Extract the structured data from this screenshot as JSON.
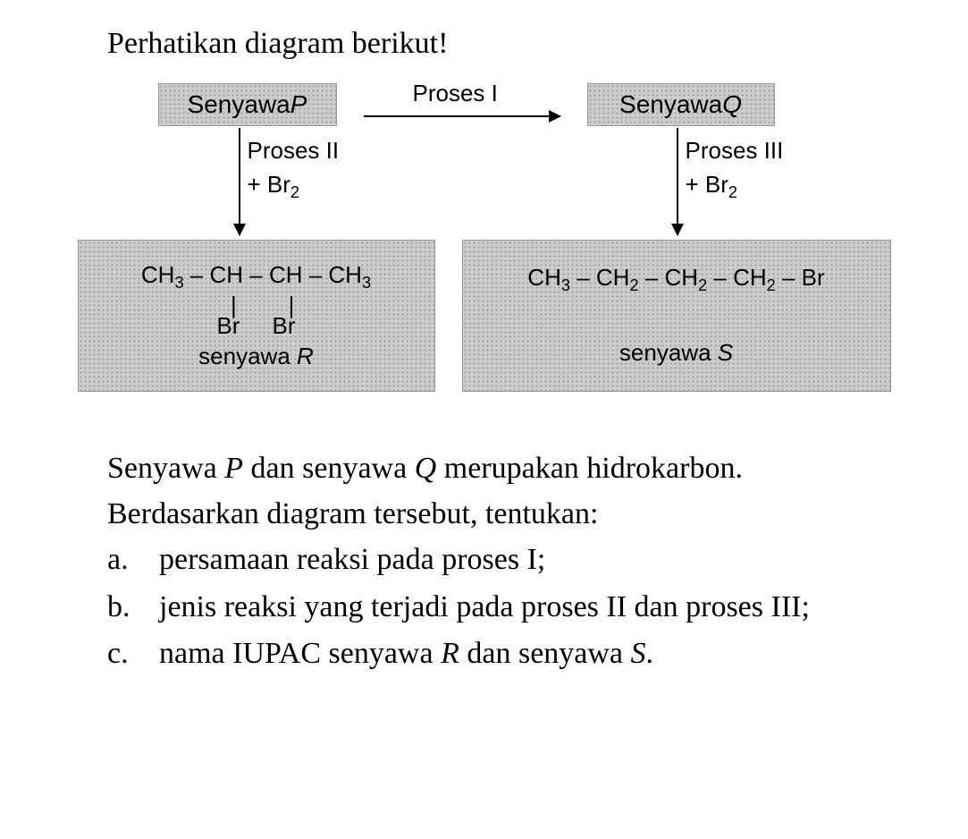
{
  "title": "Perhatikan diagram berikut!",
  "diagram": {
    "compoundP": {
      "label_pre": "Senyawa ",
      "label_sym": "P"
    },
    "compoundQ": {
      "label_pre": "Senyawa ",
      "label_sym": "Q"
    },
    "process1_label": "Proses I",
    "process2_label": "Proses II",
    "process2_reagent_pre": "+ Br",
    "process2_reagent_sub": "2",
    "process3_label": "Proses III",
    "process3_reagent_pre": "+ Br",
    "process3_reagent_sub": "2",
    "compoundR": {
      "formula_line1_html": "CH<sub>3</sub> – CH – CH – CH<sub>3</sub>",
      "sub_line1": "Br",
      "sub_line2": "Br",
      "name_pre": "senyawa ",
      "name_sym": "R"
    },
    "compoundS": {
      "formula_html": "CH<sub>3</sub> – CH<sub>2</sub> – CH<sub>2</sub> – CH<sub>2</sub> – Br",
      "name_pre": "senyawa ",
      "name_sym": "S"
    },
    "style": {
      "box_bg": "#cccccc",
      "dot_color": "#999999",
      "font_color": "#000000",
      "arrow_color": "#000000"
    }
  },
  "paragraph_html": "Senyawa <i>P</i> dan senyawa <i>Q</i> merupakan hidrokarbon. Berdasarkan diagram tersebut, tentukan:",
  "items": [
    {
      "letter": "a.",
      "text_html": "persamaan reaksi pada proses I;"
    },
    {
      "letter": "b.",
      "text_html": "jenis reaksi yang terjadi pada proses II dan proses III;"
    },
    {
      "letter": "c.",
      "text_html": "nama IUPAC senyawa <i>R</i> dan senyawa <i>S</i>."
    }
  ]
}
